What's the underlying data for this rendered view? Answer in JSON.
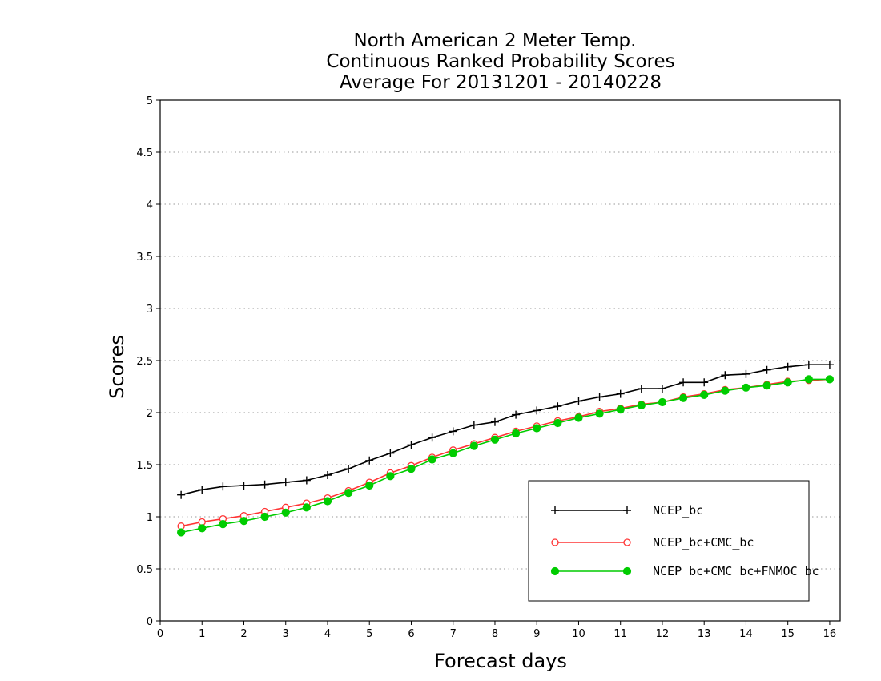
{
  "chart_data": {
    "type": "line",
    "title": [
      "North American 2 Meter Temp.",
      "Continuous Ranked Probability Scores",
      "Average For 20131201 - 20140228"
    ],
    "xlabel": "Forecast days",
    "ylabel": "Scores",
    "xlim": [
      0,
      16.25
    ],
    "ylim": [
      0,
      5
    ],
    "xticks": [
      "0",
      "1",
      "2",
      "3",
      "4",
      "5",
      "6",
      "7",
      "8",
      "9",
      "10",
      "11",
      "12",
      "13",
      "14",
      "15",
      "16"
    ],
    "yticks": [
      "0",
      "0.5",
      "1",
      "1.5",
      "2",
      "2.5",
      "3",
      "3.5",
      "4",
      "4.5",
      "5"
    ],
    "grid": "horizontal-dotted",
    "legend_position": "bottom-right",
    "x": [
      0.5,
      1,
      1.5,
      2,
      2.5,
      3,
      3.5,
      4,
      4.5,
      5,
      5.5,
      6,
      6.5,
      7,
      7.5,
      8,
      8.5,
      9,
      9.5,
      10,
      10.5,
      11,
      11.5,
      12,
      12.5,
      13,
      13.5,
      14,
      14.5,
      15,
      15.5,
      16
    ],
    "series": [
      {
        "name": "NCEP_bc",
        "color": "#000000",
        "marker": "plus",
        "values": [
          1.21,
          1.26,
          1.29,
          1.3,
          1.31,
          1.33,
          1.35,
          1.4,
          1.46,
          1.54,
          1.61,
          1.69,
          1.76,
          1.82,
          1.88,
          1.91,
          1.98,
          2.02,
          2.06,
          2.11,
          2.15,
          2.18,
          2.23,
          2.23,
          2.29,
          2.29,
          2.36,
          2.37,
          2.41,
          2.44,
          2.46,
          2.46
        ]
      },
      {
        "name": "NCEP_bc+CMC_bc",
        "color": "#ff3333",
        "marker": "open-circle",
        "values": [
          0.91,
          0.95,
          0.98,
          1.01,
          1.05,
          1.09,
          1.13,
          1.18,
          1.25,
          1.33,
          1.42,
          1.49,
          1.57,
          1.64,
          1.7,
          1.76,
          1.82,
          1.87,
          1.92,
          1.96,
          2.01,
          2.04,
          2.08,
          2.1,
          2.15,
          2.18,
          2.22,
          2.24,
          2.27,
          2.3,
          2.31,
          2.32
        ]
      },
      {
        "name": "NCEP_bc+CMC_bc+FNMOC_bc",
        "color": "#00cc00",
        "marker": "filled-circle",
        "values": [
          0.85,
          0.89,
          0.93,
          0.96,
          1.0,
          1.04,
          1.09,
          1.15,
          1.23,
          1.3,
          1.39,
          1.46,
          1.55,
          1.61,
          1.68,
          1.74,
          1.8,
          1.85,
          1.9,
          1.95,
          1.99,
          2.03,
          2.07,
          2.1,
          2.14,
          2.17,
          2.21,
          2.24,
          2.26,
          2.29,
          2.32,
          2.32
        ]
      }
    ]
  }
}
